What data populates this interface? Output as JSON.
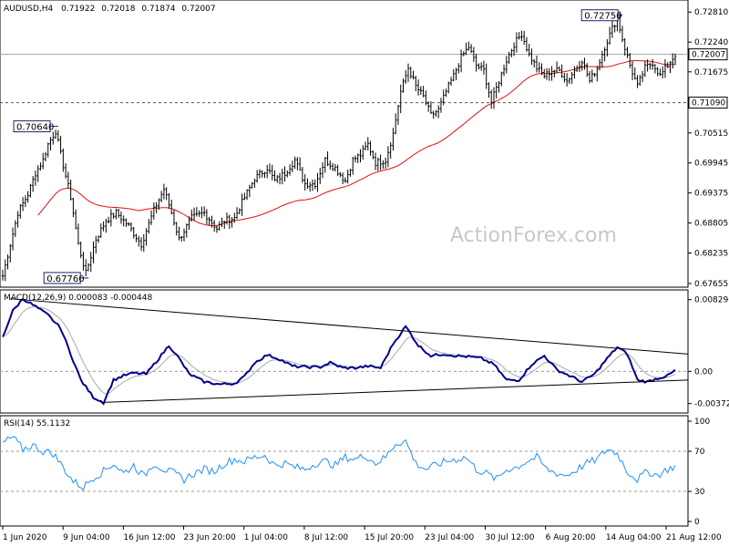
{
  "instrument": {
    "symbol_timeframe": "AUDUSD,H4",
    "ohlc": [
      "0.71922",
      "0.72018",
      "0.71874",
      "0.72007"
    ]
  },
  "watermark": "ActionForex.com",
  "chart_data": [
    {
      "type": "candlestick",
      "panel": "price",
      "title": "AUDUSD,H4  0.71922 0.72018 0.71874 0.72007",
      "ylim": [
        0.67655,
        0.7297
      ],
      "y_ticks": [
        "0.72810",
        "0.72240",
        "0.71675",
        "0.71090",
        "0.70515",
        "0.69945",
        "0.69375",
        "0.68805",
        "0.68235",
        "0.67655"
      ],
      "current_price_label": "0.72007",
      "horizontal_level": {
        "label": "0.71090",
        "value": 0.7109,
        "style": "dashed"
      },
      "annotations": [
        {
          "label": "0.70640",
          "kind": "swing high"
        },
        {
          "label": "0.67760",
          "kind": "swing low"
        },
        {
          "label": "0.72750",
          "kind": "swing high"
        }
      ],
      "x_ticks": [
        "1 Jun 2020",
        "9 Jun 04:00",
        "16 Jun 12:00",
        "23 Jun 20:00",
        "1 Jul 04:00",
        "8 Jul 12:00",
        "15 Jul 20:00",
        "23 Jul 04:00",
        "30 Jul 12:00",
        "6 Aug 20:00",
        "14 Aug 04:00",
        "21 Aug 12:00"
      ],
      "anchors": [
        [
          0,
          0.678
        ],
        [
          3,
          0.684
        ],
        [
          6,
          0.69
        ],
        [
          10,
          0.6935
        ],
        [
          13,
          0.6975
        ],
        [
          16,
          0.7
        ],
        [
          18,
          0.703
        ],
        [
          21,
          0.7055
        ],
        [
          24,
          0.699
        ],
        [
          27,
          0.693
        ],
        [
          30,
          0.684
        ],
        [
          33,
          0.6785
        ],
        [
          37,
          0.685
        ],
        [
          41,
          0.6885
        ],
        [
          45,
          0.69
        ],
        [
          50,
          0.6875
        ],
        [
          55,
          0.684
        ],
        [
          60,
          0.6905
        ],
        [
          64,
          0.6945
        ],
        [
          67,
          0.69
        ],
        [
          70,
          0.685
        ],
        [
          75,
          0.689
        ],
        [
          80,
          0.69
        ],
        [
          85,
          0.687
        ],
        [
          88,
          0.6885
        ],
        [
          92,
          0.689
        ],
        [
          95,
          0.692
        ],
        [
          100,
          0.6965
        ],
        [
          105,
          0.6985
        ],
        [
          108,
          0.696
        ],
        [
          112,
          0.6975
        ],
        [
          116,
          0.7
        ],
        [
          120,
          0.6955
        ],
        [
          124,
          0.6955
        ],
        [
          128,
          0.7
        ],
        [
          132,
          0.6985
        ],
        [
          136,
          0.696
        ],
        [
          139,
          0.7
        ],
        [
          142,
          0.701
        ],
        [
          145,
          0.703
        ],
        [
          148,
          0.6995
        ],
        [
          152,
          0.7
        ],
        [
          155,
          0.705
        ],
        [
          158,
          0.713
        ],
        [
          161,
          0.7175
        ],
        [
          164,
          0.714
        ],
        [
          167,
          0.712
        ],
        [
          170,
          0.7085
        ],
        [
          173,
          0.7095
        ],
        [
          176,
          0.713
        ],
        [
          179,
          0.716
        ],
        [
          182,
          0.7195
        ],
        [
          185,
          0.7215
        ],
        [
          188,
          0.718
        ],
        [
          191,
          0.717
        ],
        [
          194,
          0.711
        ],
        [
          197,
          0.715
        ],
        [
          200,
          0.719
        ],
        [
          203,
          0.722
        ],
        [
          206,
          0.724
        ],
        [
          209,
          0.72
        ],
        [
          212,
          0.7175
        ],
        [
          215,
          0.716
        ],
        [
          218,
          0.717
        ],
        [
          221,
          0.717
        ],
        [
          224,
          0.715
        ],
        [
          227,
          0.717
        ],
        [
          230,
          0.719
        ],
        [
          233,
          0.715
        ],
        [
          236,
          0.7175
        ],
        [
          239,
          0.7215
        ],
        [
          242,
          0.725
        ],
        [
          244,
          0.727
        ],
        [
          246,
          0.723
        ],
        [
          249,
          0.718
        ],
        [
          252,
          0.714
        ],
        [
          255,
          0.7175
        ],
        [
          258,
          0.7185
        ],
        [
          261,
          0.716
        ],
        [
          264,
          0.718
        ],
        [
          267,
          0.72
        ]
      ],
      "moving_average": {
        "style": "red line",
        "period": 55
      }
    },
    {
      "type": "line",
      "panel": "macd",
      "title": "MACD(12,26,9) 0.000083 -0.000448",
      "ylim": [
        -0.0045,
        0.009
      ],
      "y_ticks": [
        "0.008296",
        "0.00",
        "-0.003725"
      ],
      "anchors": [
        [
          0,
          0.004
        ],
        [
          4,
          0.007
        ],
        [
          8,
          0.0084
        ],
        [
          13,
          0.0075
        ],
        [
          18,
          0.0065
        ],
        [
          23,
          0.005
        ],
        [
          27,
          0.002
        ],
        [
          31,
          -0.001
        ],
        [
          36,
          -0.003
        ],
        [
          40,
          -0.0036
        ],
        [
          44,
          -0.001
        ],
        [
          48,
          -0.0005
        ],
        [
          52,
          -0.0002
        ],
        [
          57,
          -0.0003
        ],
        [
          62,
          0.0015
        ],
        [
          66,
          0.003
        ],
        [
          70,
          0.0015
        ],
        [
          74,
          -0.0003
        ],
        [
          80,
          -0.0012
        ],
        [
          86,
          -0.0015
        ],
        [
          92,
          -0.0014
        ],
        [
          96,
          -0.0006
        ],
        [
          100,
          0.001
        ],
        [
          105,
          0.0019
        ],
        [
          110,
          0.0014
        ],
        [
          115,
          0.0006
        ],
        [
          120,
          0.0005
        ],
        [
          126,
          0.0005
        ],
        [
          130,
          0.001
        ],
        [
          135,
          0.0004
        ],
        [
          140,
          0.0004
        ],
        [
          145,
          0.0006
        ],
        [
          150,
          0.0004
        ],
        [
          155,
          0.0032
        ],
        [
          160,
          0.0052
        ],
        [
          165,
          0.003
        ],
        [
          170,
          0.0018
        ],
        [
          175,
          0.002
        ],
        [
          180,
          0.0018
        ],
        [
          185,
          0.0017
        ],
        [
          190,
          0.0015
        ],
        [
          195,
          0.0008
        ],
        [
          200,
          -0.001
        ],
        [
          205,
          -0.001
        ],
        [
          210,
          0.0008
        ],
        [
          215,
          0.0018
        ],
        [
          220,
          0.0002
        ],
        [
          225,
          -0.0005
        ],
        [
          230,
          -0.0012
        ],
        [
          235,
          -0.0003
        ],
        [
          240,
          0.0015
        ],
        [
          244,
          0.0028
        ],
        [
          248,
          0.002
        ],
        [
          252,
          -0.001
        ],
        [
          256,
          -0.0012
        ],
        [
          260,
          -0.0008
        ],
        [
          264,
          -0.0005
        ],
        [
          267,
          0.0001
        ]
      ],
      "trendlines": [
        {
          "from": [
            3,
            0.0084
          ],
          "to": [
            268,
            0.002
          ]
        },
        {
          "from": [
            39,
            -0.0036
          ],
          "to": [
            268,
            -0.001
          ]
        }
      ]
    },
    {
      "type": "line",
      "panel": "rsi",
      "title": "RSI(14) 55.1132",
      "ylim": [
        0,
        100
      ],
      "y_ticks": [
        "100",
        "70",
        "30",
        "0"
      ],
      "levels": [
        70,
        30
      ],
      "anchors": [
        [
          0,
          78
        ],
        [
          4,
          84
        ],
        [
          8,
          72
        ],
        [
          12,
          76
        ],
        [
          16,
          70
        ],
        [
          20,
          68
        ],
        [
          24,
          54
        ],
        [
          28,
          40
        ],
        [
          32,
          34
        ],
        [
          36,
          44
        ],
        [
          40,
          50
        ],
        [
          44,
          58
        ],
        [
          48,
          48
        ],
        [
          52,
          56
        ],
        [
          56,
          45
        ],
        [
          60,
          58
        ],
        [
          64,
          52
        ],
        [
          68,
          48
        ],
        [
          72,
          42
        ],
        [
          76,
          48
        ],
        [
          80,
          52
        ],
        [
          84,
          50
        ],
        [
          88,
          58
        ],
        [
          92,
          62
        ],
        [
          96,
          60
        ],
        [
          100,
          64
        ],
        [
          104,
          66
        ],
        [
          108,
          56
        ],
        [
          112,
          58
        ],
        [
          116,
          54
        ],
        [
          120,
          52
        ],
        [
          124,
          58
        ],
        [
          128,
          60
        ],
        [
          132,
          56
        ],
        [
          136,
          64
        ],
        [
          140,
          62
        ],
        [
          144,
          66
        ],
        [
          148,
          58
        ],
        [
          152,
          64
        ],
        [
          156,
          78
        ],
        [
          160,
          80
        ],
        [
          164,
          58
        ],
        [
          168,
          52
        ],
        [
          172,
          56
        ],
        [
          176,
          60
        ],
        [
          180,
          62
        ],
        [
          184,
          64
        ],
        [
          188,
          52
        ],
        [
          192,
          48
        ],
        [
          196,
          42
        ],
        [
          200,
          52
        ],
        [
          204,
          54
        ],
        [
          208,
          60
        ],
        [
          212,
          64
        ],
        [
          216,
          52
        ],
        [
          220,
          48
        ],
        [
          224,
          46
        ],
        [
          228,
          52
        ],
        [
          232,
          58
        ],
        [
          236,
          62
        ],
        [
          240,
          72
        ],
        [
          244,
          68
        ],
        [
          248,
          50
        ],
        [
          252,
          42
        ],
        [
          256,
          50
        ],
        [
          260,
          46
        ],
        [
          264,
          52
        ],
        [
          267,
          55
        ]
      ]
    }
  ]
}
